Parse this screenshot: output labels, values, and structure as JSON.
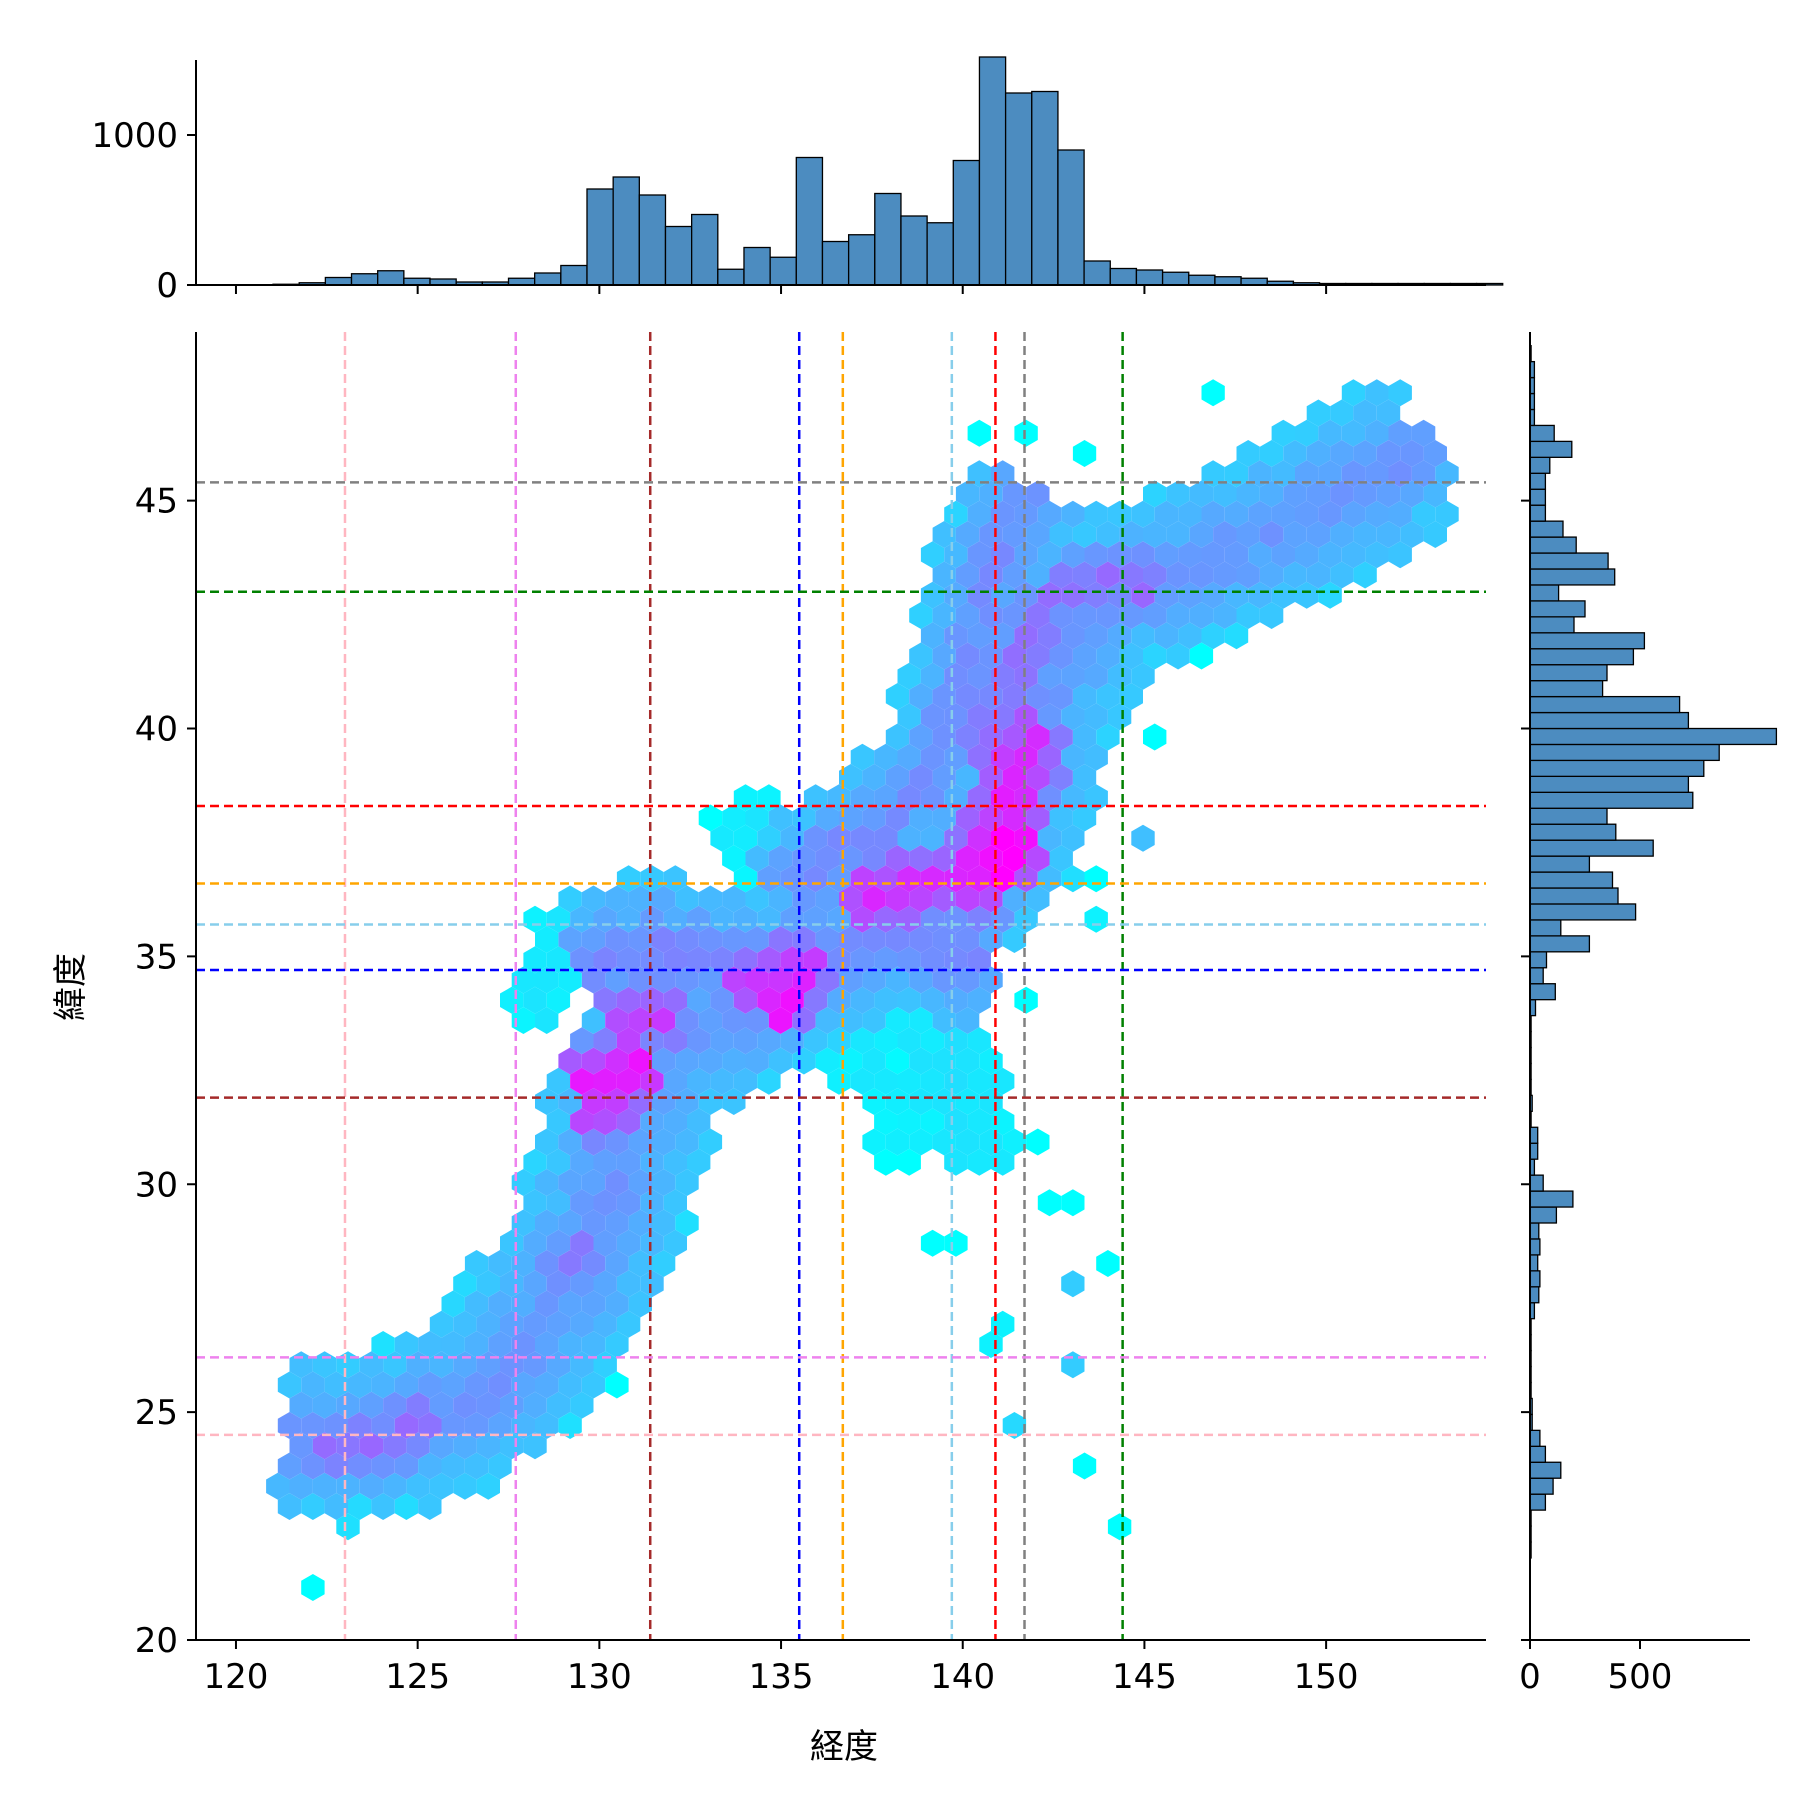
{
  "chart_data": {
    "type": "hexbin",
    "joint": {
      "xlabel": "経度",
      "ylabel": "緯度",
      "xlim": [
        118.9,
        154.4
      ],
      "ylim": [
        20,
        48.7
      ],
      "xticks": [
        120,
        125,
        130,
        135,
        140,
        145,
        150
      ],
      "yticks": [
        20,
        25,
        30,
        35,
        40,
        45
      ],
      "colormap": [
        "#00ffff",
        "#ff00ff"
      ],
      "vlines": [
        {
          "x": 123.0,
          "color": "#ffb6c1"
        },
        {
          "x": 127.7,
          "color": "#ee82ee"
        },
        {
          "x": 131.4,
          "color": "#a52a2a"
        },
        {
          "x": 135.5,
          "color": "#0000ff"
        },
        {
          "x": 136.7,
          "color": "#ffa500"
        },
        {
          "x": 139.7,
          "color": "#87ceeb"
        },
        {
          "x": 140.9,
          "color": "#ff0000"
        },
        {
          "x": 141.7,
          "color": "#808080"
        },
        {
          "x": 144.4,
          "color": "#008000"
        }
      ],
      "hlines": [
        {
          "y": 45.4,
          "color": "#808080"
        },
        {
          "y": 43.0,
          "color": "#008000"
        },
        {
          "y": 38.3,
          "color": "#ff0000"
        },
        {
          "y": 36.6,
          "color": "#ffa500"
        },
        {
          "y": 35.7,
          "color": "#87ceeb"
        },
        {
          "y": 34.7,
          "color": "#0000ff"
        },
        {
          "y": 31.9,
          "color": "#a52a2a"
        },
        {
          "y": 26.2,
          "color": "#ee82ee"
        },
        {
          "y": 24.5,
          "color": "#ffb6c1"
        }
      ],
      "density_paths": [
        {
          "points": [
            [
              121.6,
              24.5
            ],
            [
              123.2,
              24.3
            ],
            [
              125.2,
              24.8
            ],
            [
              126.8,
              25.3
            ],
            [
              127.9,
              26.3
            ],
            [
              128.9,
              27.6
            ],
            [
              129.8,
              28.8
            ],
            [
              130.3,
              30.0
            ],
            [
              130.8,
              31.3
            ],
            [
              131.2,
              32.5
            ],
            [
              132.2,
              33.3
            ],
            [
              133.5,
              33.7
            ],
            [
              135.0,
              34.4
            ],
            [
              136.5,
              35.1
            ],
            [
              138.0,
              35.9
            ],
            [
              139.5,
              36.4
            ],
            [
              140.8,
              37.3
            ],
            [
              141.5,
              38.5
            ],
            [
              141.8,
              40.0
            ],
            [
              142.6,
              41.5
            ],
            [
              143.6,
              42.8
            ],
            [
              145.2,
              43.3
            ],
            [
              147.4,
              43.9
            ],
            [
              150.0,
              44.9
            ],
            [
              152.6,
              46.1
            ]
          ],
          "width": 7,
          "level": 0.32
        },
        {
          "points": [
            [
              129.8,
              34.8
            ],
            [
              131.2,
              35.2
            ],
            [
              132.6,
              35.0
            ],
            [
              134.4,
              34.8
            ],
            [
              136.0,
              35.1
            ],
            [
              138.0,
              35.6
            ],
            [
              139.4,
              35.2
            ],
            [
              140.6,
              34.9
            ]
          ],
          "width": 6,
          "level": 0.36
        },
        {
          "points": [
            [
              135.4,
              36.4
            ],
            [
              136.4,
              37.3
            ],
            [
              137.6,
              37.8
            ],
            [
              138.8,
              38.6
            ],
            [
              139.5,
              39.6
            ],
            [
              140.1,
              41.0
            ],
            [
              140.6,
              42.4
            ],
            [
              141.0,
              43.8
            ],
            [
              141.8,
              45.2
            ]
          ],
          "width": 5,
          "level": 0.34
        },
        {
          "points": [
            [
              136.1,
              33.6
            ],
            [
              137.3,
              33.1
            ],
            [
              138.6,
              32.7
            ],
            [
              139.6,
              32.6
            ],
            [
              140.6,
              32.8
            ]
          ],
          "width": 4,
          "level": 0.05
        },
        {
          "points": [
            [
              134.0,
              38.2
            ],
            [
              134.7,
              37.2
            ],
            [
              135.4,
              36.7
            ]
          ],
          "width": 3,
          "level": 0.05
        },
        {
          "points": [
            [
              128.2,
              33.8
            ],
            [
              128.7,
              34.9
            ],
            [
              129.3,
              35.8
            ]
          ],
          "width": 2,
          "level": 0.05
        },
        {
          "points": [
            [
              130.4,
              33.4
            ],
            [
              131.2,
              33.7
            ],
            [
              132.0,
              33.8
            ]
          ],
          "width": 3,
          "level": 0.6
        },
        {
          "points": [
            [
              129.6,
              32.2
            ],
            [
              130.5,
              32.4
            ],
            [
              131.2,
              32.8
            ]
          ],
          "width": 3,
          "level": 0.72
        },
        {
          "points": [
            [
              129.8,
              31.5
            ],
            [
              130.5,
              31.6
            ]
          ],
          "width": 2,
          "level": 0.62
        },
        {
          "points": [
            [
              129.0,
              28.2
            ],
            [
              129.6,
              28.5
            ]
          ],
          "width": 3,
          "level": 0.42
        },
        {
          "points": [
            [
              122.3,
              24.2
            ],
            [
              124.0,
              24.3
            ],
            [
              125.3,
              24.9
            ]
          ],
          "width": 3,
          "level": 0.45
        },
        {
          "points": [
            [
              133.8,
              34.4
            ],
            [
              134.8,
              34.5
            ],
            [
              135.8,
              34.9
            ]
          ],
          "width": 3,
          "level": 0.62
        },
        {
          "points": [
            [
              134.7,
              33.8
            ],
            [
              135.4,
              34.3
            ]
          ],
          "width": 2,
          "level": 0.75
        },
        {
          "points": [
            [
              137.3,
              36.2
            ],
            [
              138.4,
              36.5
            ],
            [
              139.8,
              36.6
            ],
            [
              140.8,
              36.7
            ]
          ],
          "width": 3,
          "level": 0.68
        },
        {
          "points": [
            [
              140.4,
              37.1
            ],
            [
              140.9,
              37.6
            ],
            [
              141.3,
              38.3
            ],
            [
              141.6,
              39.1
            ],
            [
              141.9,
              40.0
            ]
          ],
          "width": 3,
          "level": 0.7
        },
        {
          "points": [
            [
              141.0,
              36.7
            ],
            [
              141.4,
              37.5
            ]
          ],
          "width": 2,
          "level": 0.95
        },
        {
          "points": [
            [
              140.3,
              39.5
            ],
            [
              141.2,
              40.5
            ],
            [
              141.8,
              41.8
            ],
            [
              142.2,
              43.0
            ]
          ],
          "width": 3,
          "level": 0.45
        },
        {
          "points": [
            [
              142.6,
              43.1
            ],
            [
              144.0,
              43.2
            ],
            [
              145.2,
              43.1
            ]
          ],
          "width": 3,
          "level": 0.45
        },
        {
          "points": [
            [
              139.8,
              33.0
            ],
            [
              140.1,
              31.5
            ],
            [
              140.4,
              30.5
            ]
          ],
          "width": 3,
          "level": 0.06
        },
        {
          "points": [
            [
              137.6,
              31.6
            ],
            [
              138.5,
              31.6
            ],
            [
              139.5,
              31.5
            ]
          ],
          "width": 2,
          "level": 0.03
        }
      ],
      "isolated_cells": [
        [
          122.0,
          21.3,
          0
        ],
        [
          121.6,
          22.8,
          0.15
        ],
        [
          123.8,
          22.9,
          0.06
        ],
        [
          128.0,
          33.4,
          0
        ],
        [
          129.3,
          36.3,
          0
        ],
        [
          129.0,
          33.9,
          0
        ],
        [
          130.8,
          25.6,
          0
        ],
        [
          138.3,
          31.1,
          0
        ],
        [
          137.9,
          30.6,
          0
        ],
        [
          138.8,
          30.6,
          0
        ],
        [
          139.4,
          28.5,
          0
        ],
        [
          140.0,
          28.5,
          0
        ],
        [
          140.9,
          26.6,
          0.05
        ],
        [
          141.2,
          26.9,
          0.05
        ],
        [
          141.6,
          24.7,
          0.15
        ],
        [
          142.2,
          31.0,
          0
        ],
        [
          142.3,
          29.5,
          0
        ],
        [
          143.0,
          29.8,
          0
        ],
        [
          143.1,
          26.1,
          0.2
        ],
        [
          143.3,
          27.9,
          0.2
        ],
        [
          144.1,
          28.1,
          0
        ],
        [
          143.6,
          23.7,
          0
        ],
        [
          144.6,
          22.3,
          0
        ],
        [
          142.5,
          44.8,
          0
        ],
        [
          143.3,
          45.9,
          0
        ],
        [
          140.6,
          46.3,
          0
        ],
        [
          141.9,
          46.3,
          0
        ],
        [
          146.7,
          47.4,
          0
        ],
        [
          149.9,
          46.8,
          0
        ],
        [
          151.4,
          47.4,
          0
        ],
        [
          152.3,
          46.6,
          0
        ],
        [
          147.0,
          43.8,
          0.15
        ],
        [
          148.3,
          42.4,
          0.05
        ],
        [
          146.7,
          41.5,
          0
        ],
        [
          145.1,
          41.5,
          0
        ],
        [
          143.9,
          40.0,
          0.05
        ],
        [
          145.5,
          40.0,
          0
        ],
        [
          143.8,
          36.8,
          0
        ],
        [
          143.8,
          35.7,
          0.05
        ],
        [
          139.3,
          34.3,
          0.1
        ],
        [
          137.8,
          31.0,
          0.05
        ],
        [
          139.6,
          36.8,
          0.15
        ],
        [
          144.9,
          37.7,
          0.25
        ],
        [
          142.0,
          33.9,
          0
        ],
        [
          143.5,
          41.1,
          0.1
        ]
      ]
    },
    "top_histogram": {
      "yticks": [
        0,
        1000
      ],
      "ylim": [
        0,
        1500
      ],
      "bin_start": 120.3,
      "bin_width": 0.72,
      "counts": [
        0,
        5,
        15,
        50,
        75,
        95,
        45,
        40,
        20,
        20,
        45,
        80,
        130,
        640,
        720,
        600,
        390,
        470,
        105,
        250,
        185,
        850,
        290,
        335,
        610,
        460,
        415,
        830,
        1520,
        1280,
        1290,
        900,
        160,
        110,
        100,
        85,
        65,
        55,
        45,
        25,
        15,
        10,
        10,
        10,
        10,
        10,
        10,
        10
      ]
    },
    "right_histogram": {
      "xticks": [
        0,
        500
      ],
      "xlim": [
        0,
        1000
      ],
      "bin_start": 21.8,
      "bin_width": 0.35,
      "counts": [
        5,
        5,
        5,
        70,
        105,
        140,
        70,
        45,
        10,
        10,
        5,
        5,
        5,
        5,
        5,
        20,
        40,
        45,
        35,
        45,
        40,
        120,
        195,
        60,
        20,
        35,
        35,
        5,
        10,
        5,
        5,
        5,
        5,
        5,
        25,
        115,
        60,
        75,
        270,
        140,
        480,
        400,
        375,
        270,
        560,
        390,
        350,
        740,
        720,
        790,
        860,
        1120,
        720,
        680,
        330,
        350,
        470,
        520,
        200,
        250,
        130,
        385,
        355,
        210,
        150,
        70,
        70,
        70,
        90,
        190,
        110,
        20,
        20,
        20,
        20,
        5
      ]
    }
  }
}
